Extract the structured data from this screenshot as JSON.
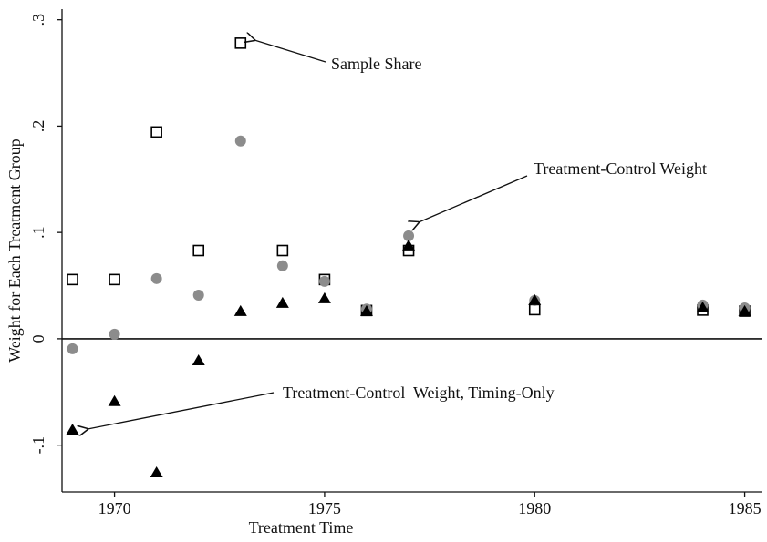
{
  "chart_data": {
    "type": "scatter",
    "x_label": "Treatment Time",
    "y_label": "Weight for Each Treatment Group",
    "x": [
      1969,
      1970,
      1971,
      1972,
      1973,
      1974,
      1975,
      1976,
      1977,
      1980,
      1984,
      1985
    ],
    "series": [
      {
        "name": "Sample Share",
        "marker": "square",
        "color": "#000000",
        "values": [
          0.0557,
          0.0557,
          0.1945,
          0.083,
          0.278,
          0.083,
          0.0557,
          0.0266,
          0.083,
          0.0274,
          0.027,
          0.026
        ]
      },
      {
        "name": "Treatment-Control Weight",
        "marker": "circle",
        "color": "#8c8c8c",
        "values": [
          -0.0094,
          0.0043,
          0.0566,
          0.041,
          0.186,
          0.0686,
          0.054,
          0.028,
          0.0968,
          0.036,
          0.0317,
          0.029
        ]
      },
      {
        "name": "Treatment-Control  Weight, Timing-Only",
        "marker": "triangle",
        "color": "#000000",
        "values": [
          -0.0857,
          -0.059,
          -0.126,
          -0.0206,
          0.0257,
          0.0334,
          0.0377,
          0.0257,
          0.0874,
          0.036,
          0.029,
          0.0257
        ]
      }
    ],
    "xlim": [
      1968.75,
      1985.4
    ],
    "ylim": [
      -0.144,
      0.31
    ],
    "xticks": [
      1970,
      1975,
      1980,
      1985
    ],
    "yticks": [
      {
        "value": -0.1,
        "label": "-.1"
      },
      0,
      {
        "value": 0.1,
        "label": ".1"
      },
      {
        "value": 0.2,
        "label": ".2"
      },
      {
        "value": 0.3,
        "label": ".3"
      }
    ],
    "reference_line": 0,
    "grid": false
  }
}
